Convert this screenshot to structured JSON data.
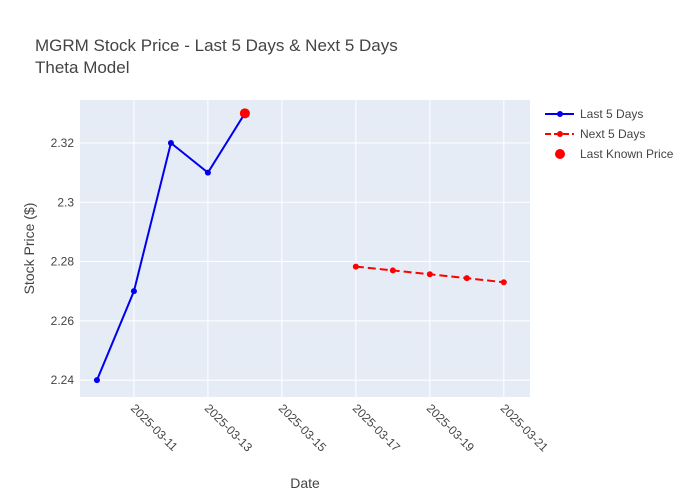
{
  "chart_data": {
    "type": "line",
    "title": "MGRM Stock Price - Last 5 Days & Next 5 Days",
    "subtitle": "Theta Model",
    "xlabel": "Date",
    "ylabel": "Stock Price ($)",
    "x_type": "date",
    "xlim": [
      "2025-03-09T13:00",
      "2025-03-21T17:00"
    ],
    "ylim": [
      2.2343,
      2.3345
    ],
    "x_ticks": [
      "2025-03-11",
      "2025-03-13",
      "2025-03-15",
      "2025-03-17",
      "2025-03-19",
      "2025-03-21"
    ],
    "y_ticks": [
      2.24,
      2.26,
      2.28,
      2.3,
      2.32
    ],
    "y_tick_labels": [
      "2.24",
      "2.26",
      "2.28",
      "2.3",
      "2.32"
    ],
    "grid": true,
    "legend_position": "top-right",
    "series": [
      {
        "name": "Last 5 Days",
        "color": "#0000ee",
        "style": "solid",
        "mode": "lines+markers",
        "x": [
          "2025-03-10",
          "2025-03-11",
          "2025-03-12",
          "2025-03-13",
          "2025-03-14"
        ],
        "y": [
          2.24,
          2.27,
          2.32,
          2.31,
          2.33
        ]
      },
      {
        "name": "Next 5 Days",
        "color": "#ff0000",
        "style": "dashed",
        "mode": "lines+markers",
        "x": [
          "2025-03-17",
          "2025-03-18",
          "2025-03-19",
          "2025-03-20",
          "2025-03-21"
        ],
        "y": [
          2.2783,
          2.277,
          2.2757,
          2.2744,
          2.273
        ]
      },
      {
        "name": "Last Known Price",
        "color": "#ff0000",
        "style": "none",
        "mode": "markers",
        "x": [
          "2025-03-14"
        ],
        "y": [
          2.33
        ]
      }
    ]
  },
  "colors": {
    "plot_background": "#e5ecf6",
    "grid": "#ffffff",
    "text": "#444444"
  }
}
